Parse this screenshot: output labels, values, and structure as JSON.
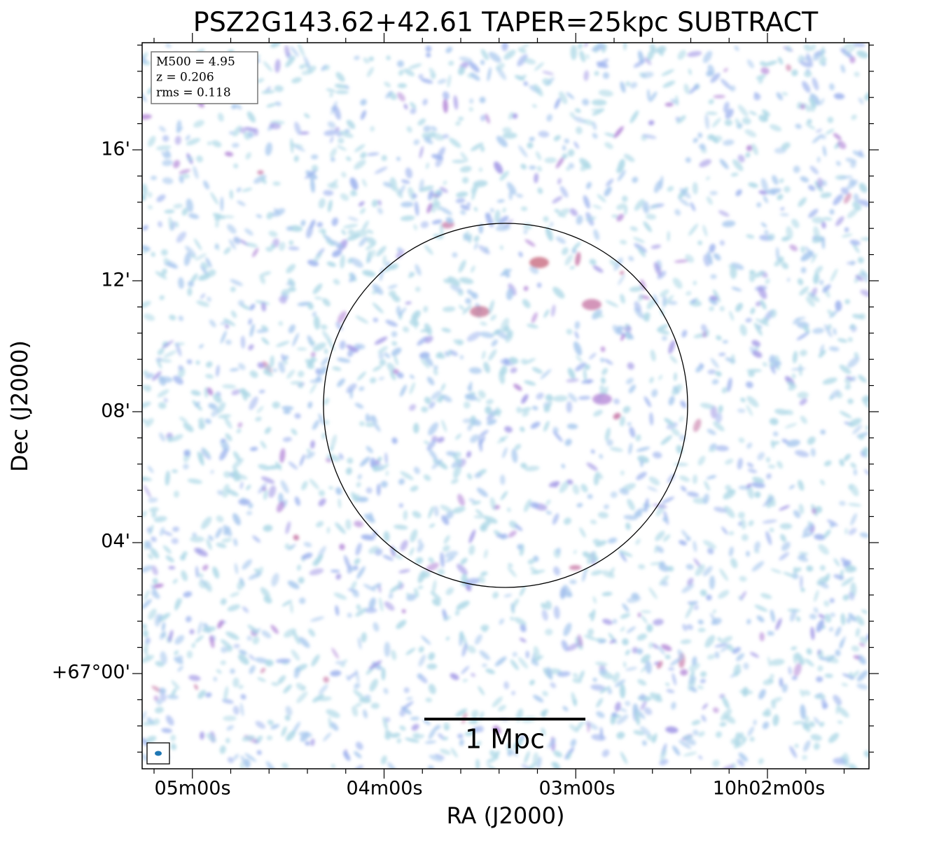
{
  "title": "PSZ2G143.62+42.61 TAPER=25kpc SUBTRACT",
  "x_axis": {
    "label": "RA (J2000)",
    "ticks": [
      "05m00s",
      "04m00s",
      "03m00s",
      "10h02m00s"
    ]
  },
  "y_axis": {
    "label": "Dec (J2000)",
    "ticks": [
      "16'",
      "12'",
      "08'",
      "04'",
      "+67°00'"
    ]
  },
  "info": [
    "M500 = 4.95",
    "z = 0.206",
    "rms = 0.118"
  ],
  "scale_bar": "1 Mpc"
}
